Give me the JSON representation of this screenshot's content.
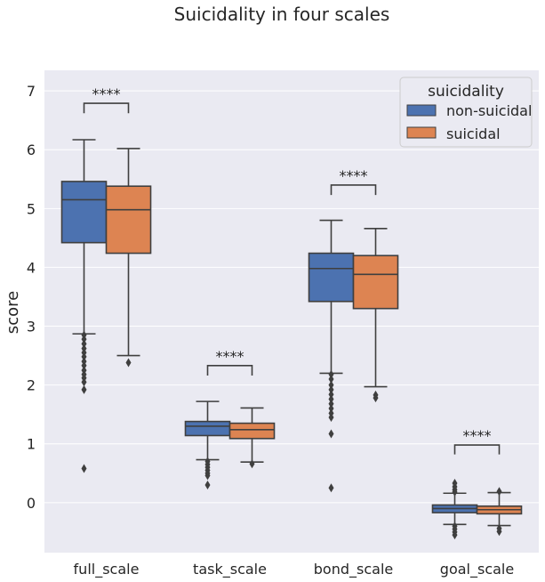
{
  "chart_data": {
    "type": "box",
    "title": "Suicidality in four scales",
    "xlabel": "",
    "ylabel": "score",
    "ylim": [
      -0.85,
      7.35
    ],
    "yticks": [
      0,
      1,
      2,
      3,
      4,
      5,
      6,
      7
    ],
    "yticklabels": [
      "0",
      "1",
      "2",
      "3",
      "4",
      "5",
      "6",
      "7"
    ],
    "grid": true,
    "categories": [
      "full_scale",
      "task_scale",
      "bond_scale",
      "goal_scale"
    ],
    "legend": {
      "title": "suicidality",
      "position": "top-right",
      "entries": [
        "non-suicidal",
        "suicidal"
      ]
    },
    "colors": {
      "non-suicidal": "#4c72b0",
      "suicidal": "#dd8452",
      "background": "#eaeaf2",
      "grid": "#ffffff",
      "line": "#3f3f3f"
    },
    "series": [
      {
        "name": "non-suicidal",
        "boxes": [
          {
            "whisker_low": 2.87,
            "q1": 4.42,
            "median": 5.15,
            "q3": 5.46,
            "whisker_high": 6.17,
            "outliers": [
              2.85,
              2.78,
              2.7,
              2.62,
              2.55,
              2.48,
              2.4,
              2.33,
              2.25,
              2.18,
              2.12,
              2.05,
              1.92,
              0.58
            ]
          },
          {
            "whisker_low": 0.73,
            "q1": 1.14,
            "median": 1.3,
            "q3": 1.38,
            "whisker_high": 1.72,
            "outliers": [
              0.7,
              0.65,
              0.6,
              0.55,
              0.5,
              0.46,
              0.3
            ]
          },
          {
            "whisker_low": 2.2,
            "q1": 3.42,
            "median": 3.98,
            "q3": 4.24,
            "whisker_high": 4.8,
            "outliers": [
              2.18,
              2.1,
              2.0,
              1.92,
              1.84,
              1.76,
              1.68,
              1.6,
              1.52,
              1.45,
              1.17,
              0.25
            ]
          },
          {
            "whisker_low": -0.37,
            "q1": -0.17,
            "median": -0.1,
            "q3": -0.04,
            "whisker_high": 0.16,
            "outliers": [
              0.33,
              0.27,
              0.22,
              0.18,
              -0.4,
              -0.45,
              -0.5,
              -0.55
            ]
          }
        ]
      },
      {
        "name": "suicidal",
        "boxes": [
          {
            "whisker_low": 2.5,
            "q1": 4.24,
            "median": 4.98,
            "q3": 5.38,
            "whisker_high": 6.02,
            "outliers": [
              2.38
            ]
          },
          {
            "whisker_low": 0.69,
            "q1": 1.09,
            "median": 1.24,
            "q3": 1.35,
            "whisker_high": 1.61,
            "outliers": [
              0.66
            ]
          },
          {
            "whisker_low": 1.97,
            "q1": 3.3,
            "median": 3.88,
            "q3": 4.2,
            "whisker_high": 4.66,
            "outliers": [
              1.83,
              1.78
            ]
          },
          {
            "whisker_low": -0.39,
            "q1": -0.19,
            "median": -0.12,
            "q3": -0.06,
            "whisker_high": 0.17,
            "outliers": [
              0.19,
              -0.44,
              -0.49
            ]
          }
        ]
      }
    ],
    "annotations": [
      {
        "category": "full_scale",
        "bracket_top": 6.79,
        "bracket_bottom": 6.62,
        "text": "****"
      },
      {
        "category": "task_scale",
        "bracket_top": 2.33,
        "bracket_bottom": 2.16,
        "text": "****"
      },
      {
        "category": "bond_scale",
        "bracket_top": 5.4,
        "bracket_bottom": 5.23,
        "text": "****"
      },
      {
        "category": "goal_scale",
        "bracket_top": 0.98,
        "bracket_bottom": 0.82,
        "text": "****"
      }
    ]
  }
}
